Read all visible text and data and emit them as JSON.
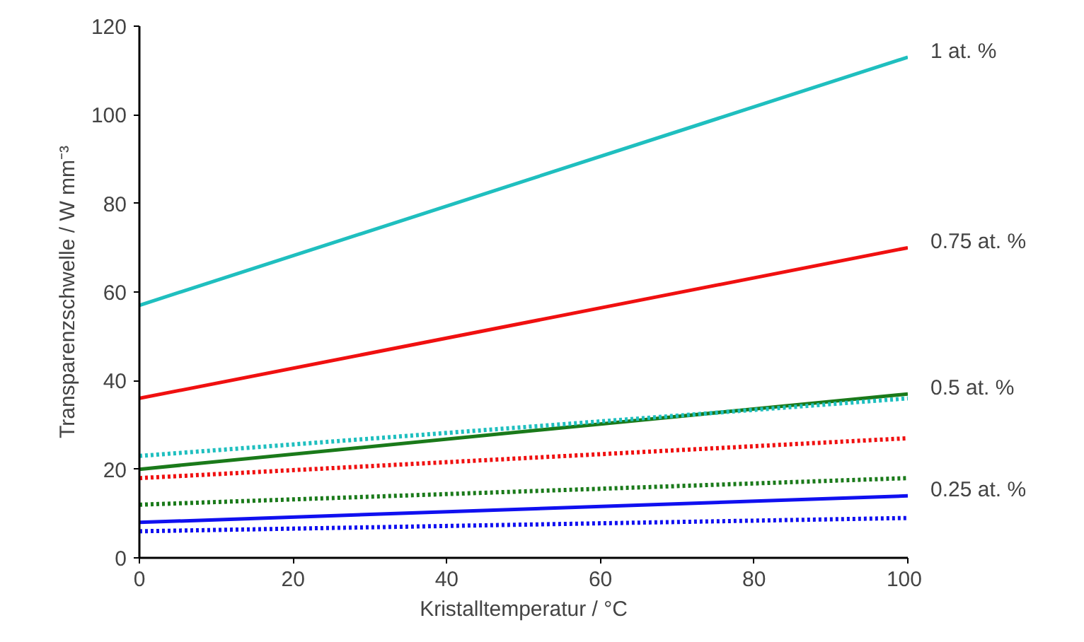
{
  "chart_data": {
    "type": "line",
    "xlabel": "Kristalltemperatur / °C",
    "ylabel": "Transparenzschwelle / W mm⁻³",
    "x": [
      0,
      100
    ],
    "xlim": [
      0,
      100
    ],
    "xticks": [
      0,
      20,
      40,
      60,
      80,
      100
    ],
    "ylim": [
      0,
      120
    ],
    "yticks": [
      0,
      20,
      40,
      60,
      80,
      100,
      120
    ],
    "grid": false,
    "marker": "none",
    "series": [
      {
        "name": "1 at. %",
        "color": "#1fbfbf",
        "values": [
          57,
          113
        ],
        "line_style": "solid"
      },
      {
        "name": "0.75 at. %",
        "color": "#f01010",
        "values": [
          36,
          70
        ],
        "line_style": "solid"
      },
      {
        "name": "0.5 at. %",
        "color": "#1a7a1a",
        "values": [
          20,
          37
        ],
        "line_style": "solid"
      },
      {
        "name": "0.25 at. %",
        "color": "#1010f0",
        "values": [
          8,
          14
        ],
        "line_style": "solid"
      },
      {
        "color": "#1fbfbf",
        "values": [
          23,
          36
        ],
        "line_style": "dotted"
      },
      {
        "color": "#f01010",
        "values": [
          18,
          27
        ],
        "line_style": "dotted"
      },
      {
        "color": "#1a7a1a",
        "values": [
          12,
          18
        ],
        "line_style": "dotted"
      },
      {
        "color": "#1010f0",
        "values": [
          6,
          9
        ],
        "line_style": "dotted"
      }
    ]
  }
}
